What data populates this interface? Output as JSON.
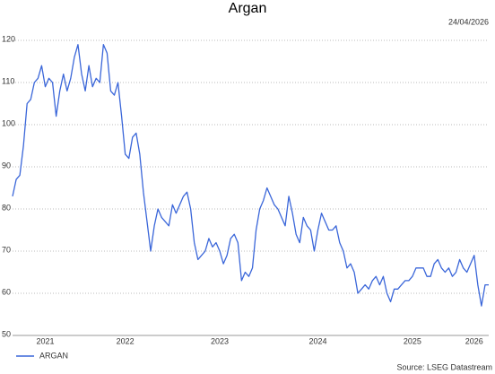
{
  "chart_data": {
    "type": "line",
    "title": "Argan",
    "date": "24/04/2026",
    "source": "Source: LSEG Datastream",
    "categories": [
      null,
      null,
      null,
      null,
      null,
      null,
      null,
      null,
      null,
      "2021",
      null,
      null,
      null,
      null,
      null,
      null,
      null,
      null,
      null,
      null,
      null,
      null,
      null,
      null,
      null,
      null,
      null,
      null,
      null,
      null,
      null,
      "2022",
      null,
      null,
      null,
      null,
      null,
      null,
      null,
      null,
      null,
      null,
      null,
      null,
      null,
      null,
      null,
      null,
      null,
      null,
      null,
      null,
      null,
      null,
      null,
      null,
      null,
      "2023",
      null,
      null,
      null,
      null,
      null,
      null,
      null,
      null,
      null,
      null,
      null,
      null,
      null,
      null,
      null,
      null,
      null,
      null,
      null,
      null,
      null,
      null,
      null,
      null,
      null,
      null,
      "2024",
      null,
      null,
      null,
      null,
      null,
      null,
      null,
      null,
      null,
      null,
      null,
      null,
      null,
      null,
      null,
      null,
      null,
      null,
      null,
      null,
      null,
      null,
      null,
      null,
      null,
      "2025",
      null,
      null,
      null,
      null,
      null,
      null,
      null,
      null,
      null,
      null,
      null,
      null,
      null,
      null,
      null,
      null,
      "2026",
      null,
      null,
      null,
      null
    ],
    "series": [
      {
        "name": "ARGAN",
        "color": "#3a66d9",
        "values": [
          83,
          87,
          88,
          95,
          105,
          106,
          110,
          111,
          114,
          109,
          111,
          110,
          102,
          108,
          112,
          108,
          111,
          116,
          119,
          112,
          108,
          114,
          109,
          111,
          110,
          119,
          117,
          108,
          107,
          110,
          102,
          93,
          92,
          97,
          98,
          93,
          84,
          77,
          70,
          76,
          80,
          78,
          77,
          76,
          81,
          79,
          81,
          83,
          84,
          80,
          72,
          68,
          69,
          70,
          73,
          71,
          72,
          70,
          67,
          69,
          73,
          74,
          72,
          63,
          65,
          64,
          66,
          75,
          80,
          82,
          85,
          83,
          81,
          80,
          78,
          76,
          83,
          79,
          74,
          72,
          78,
          76,
          75,
          70,
          75,
          79,
          77,
          75,
          75,
          76,
          72,
          70,
          66,
          67,
          65,
          60,
          61,
          62,
          61,
          63,
          64,
          62,
          64,
          60,
          58,
          61,
          61,
          62,
          63,
          63,
          64,
          66,
          66,
          66,
          64,
          64,
          67,
          68,
          66,
          65,
          66,
          64,
          65,
          68,
          66,
          65,
          67,
          69,
          62,
          57,
          62,
          62
        ]
      }
    ],
    "ylim": [
      50,
      120
    ],
    "yticks": [
      50,
      60,
      70,
      80,
      90,
      100,
      110,
      120
    ],
    "grid": true
  }
}
